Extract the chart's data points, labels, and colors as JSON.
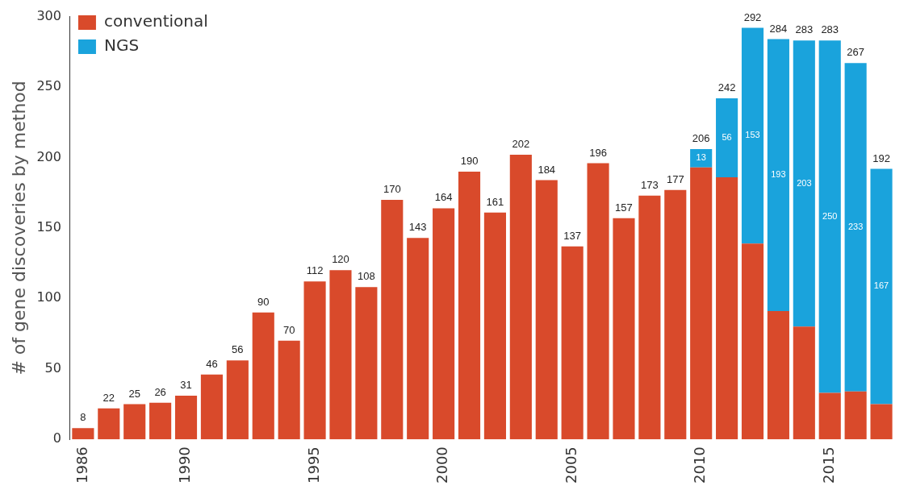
{
  "chart_data": {
    "type": "bar",
    "stacked": true,
    "ylabel": "# of gene discoveries by method",
    "categories": [
      "1986",
      null,
      null,
      null,
      "1990",
      null,
      null,
      null,
      null,
      "1995",
      null,
      null,
      null,
      null,
      "2000",
      null,
      null,
      null,
      null,
      "2005",
      null,
      null,
      null,
      null,
      "2010",
      null,
      null,
      null,
      null,
      "2015",
      null,
      null
    ],
    "series": [
      {
        "name": "conventional",
        "color": "#d94a2b",
        "values": [
          8,
          22,
          25,
          26,
          31,
          46,
          56,
          90,
          70,
          112,
          120,
          108,
          170,
          143,
          164,
          190,
          161,
          202,
          184,
          137,
          196,
          157,
          173,
          177,
          193,
          186,
          139,
          91,
          80,
          33,
          34,
          25
        ]
      },
      {
        "name": "NGS",
        "color": "#1aa3dc",
        "values": [
          null,
          null,
          null,
          null,
          null,
          null,
          null,
          null,
          null,
          null,
          null,
          null,
          null,
          null,
          null,
          null,
          null,
          null,
          null,
          null,
          null,
          null,
          null,
          null,
          13,
          56,
          153,
          193,
          203,
          250,
          233,
          167
        ],
        "value_labels": [
          null,
          null,
          null,
          null,
          null,
          null,
          null,
          null,
          null,
          null,
          null,
          null,
          null,
          null,
          null,
          null,
          null,
          null,
          null,
          null,
          null,
          null,
          null,
          null,
          "13",
          "56",
          "153",
          "193",
          "203",
          "250",
          "233",
          "167"
        ]
      }
    ],
    "totals": [
      "8",
      "22",
      "25",
      "26",
      "31",
      "46",
      "56",
      "90",
      "70",
      "112",
      "120",
      "108",
      "170",
      "143",
      "164",
      "190",
      "161",
      "202",
      "184",
      "137",
      "196",
      "157",
      "173",
      "177",
      "206",
      "242",
      "292",
      "284",
      "283",
      "283",
      "267",
      "192"
    ],
    "ylim": [
      0,
      300
    ],
    "yticks": [
      0,
      50,
      100,
      150,
      200,
      250,
      300
    ],
    "grid": false,
    "legend": "top left"
  }
}
